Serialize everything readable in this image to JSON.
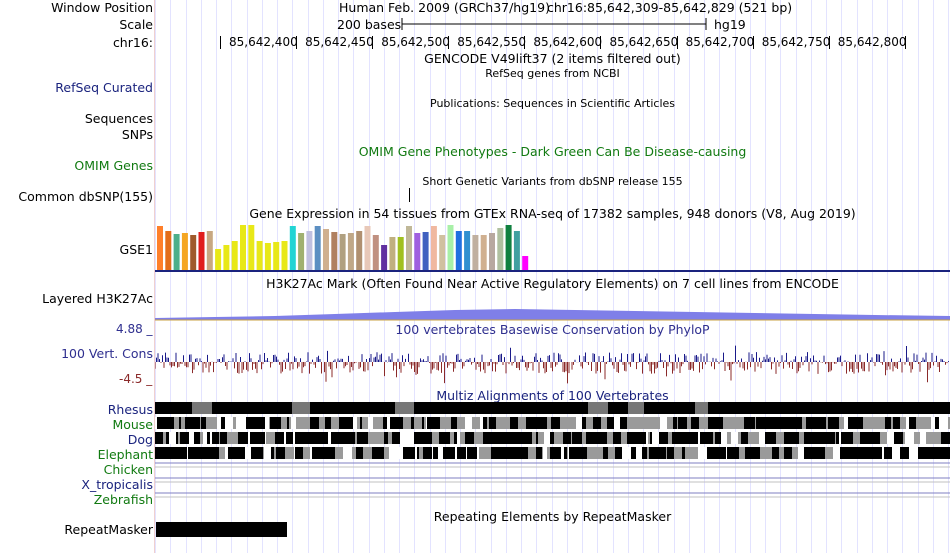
{
  "header": {
    "window_position_label": "Window Position",
    "scale_label": "Scale",
    "chrom_label": "chr16:",
    "assembly": "Human Feb. 2009 (GRCh37/hg19)",
    "position": "chr16:85,642,309-85,642,829 (521 bp)",
    "scale_text": "200 bases",
    "scale_db": "hg19",
    "ruler_ticks": [
      "85,642,400",
      "85,642,450",
      "85,642,500",
      "85,642,550",
      "85,642,600",
      "85,642,650",
      "85,642,700",
      "85,642,750",
      "85,642,800"
    ]
  },
  "tracks": {
    "gencode": {
      "title": "GENCODE V49lift37 (2 items filtered out)"
    },
    "refseq": {
      "label": "RefSeq Curated",
      "title": "RefSeq genes from NCBI",
      "color": "#1a237e"
    },
    "publications": {
      "title": "Publications: Sequences in Scientific Articles"
    },
    "sequences": {
      "label": "Sequences"
    },
    "snps": {
      "label": "SNPs"
    },
    "omim": {
      "label": "OMIM Genes",
      "title": "OMIM Gene Phenotypes - Dark Green Can Be Disease-causing",
      "color": "#117a11"
    },
    "common_snp": {
      "label": "Common dbSNP(155)",
      "title": "Short Genetic Variants from dbSNP release 155"
    },
    "gtex": {
      "label": "GSE1",
      "title": "Gene Expression in 54 tissues from GTEx RNA-seq of 17382 samples, 948 donors (V8, Aug 2019)",
      "bars": [
        {
          "v": 0.95,
          "c": "#ff7f2a"
        },
        {
          "v": 0.85,
          "c": "#e36d1a"
        },
        {
          "v": 0.78,
          "c": "#4daf8a"
        },
        {
          "v": 0.8,
          "c": "#f5a623"
        },
        {
          "v": 0.75,
          "c": "#a05a2c"
        },
        {
          "v": 0.82,
          "c": "#e01d1d"
        },
        {
          "v": 0.85,
          "c": "#c8a882"
        },
        {
          "v": 0.45,
          "c": "#e8e818"
        },
        {
          "v": 0.55,
          "c": "#e8e818"
        },
        {
          "v": 0.62,
          "c": "#e8e818"
        },
        {
          "v": 0.98,
          "c": "#e8e818"
        },
        {
          "v": 0.98,
          "c": "#e8e818"
        },
        {
          "v": 0.62,
          "c": "#e8e818"
        },
        {
          "v": 0.58,
          "c": "#e8e818"
        },
        {
          "v": 0.6,
          "c": "#e8e818"
        },
        {
          "v": 0.62,
          "c": "#e8e818"
        },
        {
          "v": 0.95,
          "c": "#22d4d4"
        },
        {
          "v": 0.8,
          "c": "#a0b070"
        },
        {
          "v": 0.85,
          "c": "#c0c0e0"
        },
        {
          "v": 0.95,
          "c": "#5c8fc2"
        },
        {
          "v": 0.9,
          "c": "#d0b090"
        },
        {
          "v": 0.82,
          "c": "#b08060"
        },
        {
          "v": 0.78,
          "c": "#b0a080"
        },
        {
          "v": 0.8,
          "c": "#c0a888"
        },
        {
          "v": 0.85,
          "c": "#b09070"
        },
        {
          "v": 0.95,
          "c": "#e8c8b8"
        },
        {
          "v": 0.75,
          "c": "#c09080"
        },
        {
          "v": 0.55,
          "c": "#6030a0"
        },
        {
          "v": 0.72,
          "c": "#c0b080"
        },
        {
          "v": 0.72,
          "c": "#a0c020"
        },
        {
          "v": 0.95,
          "c": "#c0b898"
        },
        {
          "v": 0.8,
          "c": "#a060e0"
        },
        {
          "v": 0.82,
          "c": "#4060c0"
        },
        {
          "v": 0.95,
          "c": "#f0b8a0"
        },
        {
          "v": 0.75,
          "c": "#d0c0a0"
        },
        {
          "v": 0.98,
          "c": "#a8f0a8"
        },
        {
          "v": 0.85,
          "c": "#2070e0"
        },
        {
          "v": 0.85,
          "c": "#3090d0"
        },
        {
          "v": 0.75,
          "c": "#c0b0a0"
        },
        {
          "v": 0.75,
          "c": "#d0b090"
        },
        {
          "v": 0.8,
          "c": "#b8a8a0"
        },
        {
          "v": 0.92,
          "c": "#b0c0a0"
        },
        {
          "v": 0.98,
          "c": "#108040"
        },
        {
          "v": 0.85,
          "c": "#40a0a0"
        },
        {
          "v": 0.3,
          "c": "#ff00ff"
        }
      ]
    },
    "h3k27ac": {
      "label": "Layered H3K27Ac",
      "title": "H3K27Ac Mark (Often Found Near Active Regulatory Elements) on 7 cell lines from ENCODE"
    },
    "conservation": {
      "label": "100 Vert. Cons",
      "title": "100 vertebrates Basewise Conservation by PhyloP",
      "ymax": "4.88 _",
      "ymin": "-4.5 _",
      "pos_color": "#1a1a8a",
      "neg_color": "#8b2a2a",
      "label_color": "#2f2f8f"
    },
    "multiz": {
      "title": "Multiz Alignments of 100 Vertebrates",
      "title_color": "#1a237e",
      "species": [
        {
          "name": "Rhesus",
          "color": "#1a237e"
        },
        {
          "name": "Mouse",
          "color": "#117a11"
        },
        {
          "name": "Dog",
          "color": "#1a237e"
        },
        {
          "name": "Elephant",
          "color": "#117a11"
        },
        {
          "name": "Chicken",
          "color": "#117a11"
        },
        {
          "name": "X_tropicalis",
          "color": "#1a237e"
        },
        {
          "name": "Zebrafish",
          "color": "#117a11"
        }
      ]
    },
    "repeatmasker": {
      "label": "RepeatMasker",
      "title": "Repeating Elements by RepeatMasker"
    }
  }
}
